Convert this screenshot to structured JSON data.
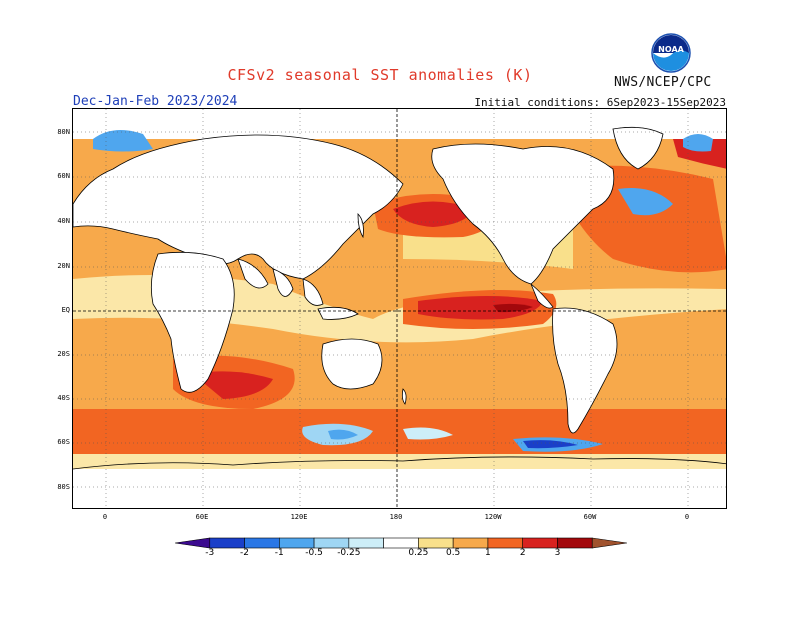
{
  "header": {
    "title": "CFSv2 seasonal SST anomalies (K)",
    "season": "Dec-Jan-Feb 2023/2024",
    "initial_conditions": "Initial conditions: 6Sep2023-15Sep2023",
    "agency": "NWS/NCEP/CPC",
    "logo_text": "NOAA"
  },
  "map": {
    "lat_labels": [
      "80N",
      "60N",
      "40N",
      "20N",
      "EQ",
      "20S",
      "40S",
      "60S",
      "80S"
    ],
    "lon_labels": [
      "0",
      "60E",
      "120E",
      "180",
      "120W",
      "60W",
      "0"
    ],
    "grid": "dotted every 30 degrees",
    "reference_lines": [
      "equator (dashed)",
      "180 meridian (dashed)"
    ]
  },
  "colorbar": {
    "labels": [
      "-3",
      "-2",
      "-1",
      "-0.5",
      "-0.25",
      "0.25",
      "0.5",
      "1",
      "2",
      "3"
    ],
    "colors": [
      "#3b0a8f",
      "#1a3fc9",
      "#2a77e6",
      "#4fa6ee",
      "#9fd6f4",
      "#cdeef8",
      "#ffffff",
      "#f9e08b",
      "#f7a94b",
      "#f26522",
      "#d8221f",
      "#a3080c",
      "#a0522d"
    ]
  },
  "anomaly_legend": {
    "strong_warm": "#a3080c",
    "warm": "#d8221f",
    "moderate_warm": "#f26522",
    "weak_warm": "#f7a94b",
    "slight_warm": "#f9e08b",
    "slight_cool": "#9fd6f4",
    "cool": "#4fa6ee",
    "strong_cool": "#1a3fc9"
  }
}
